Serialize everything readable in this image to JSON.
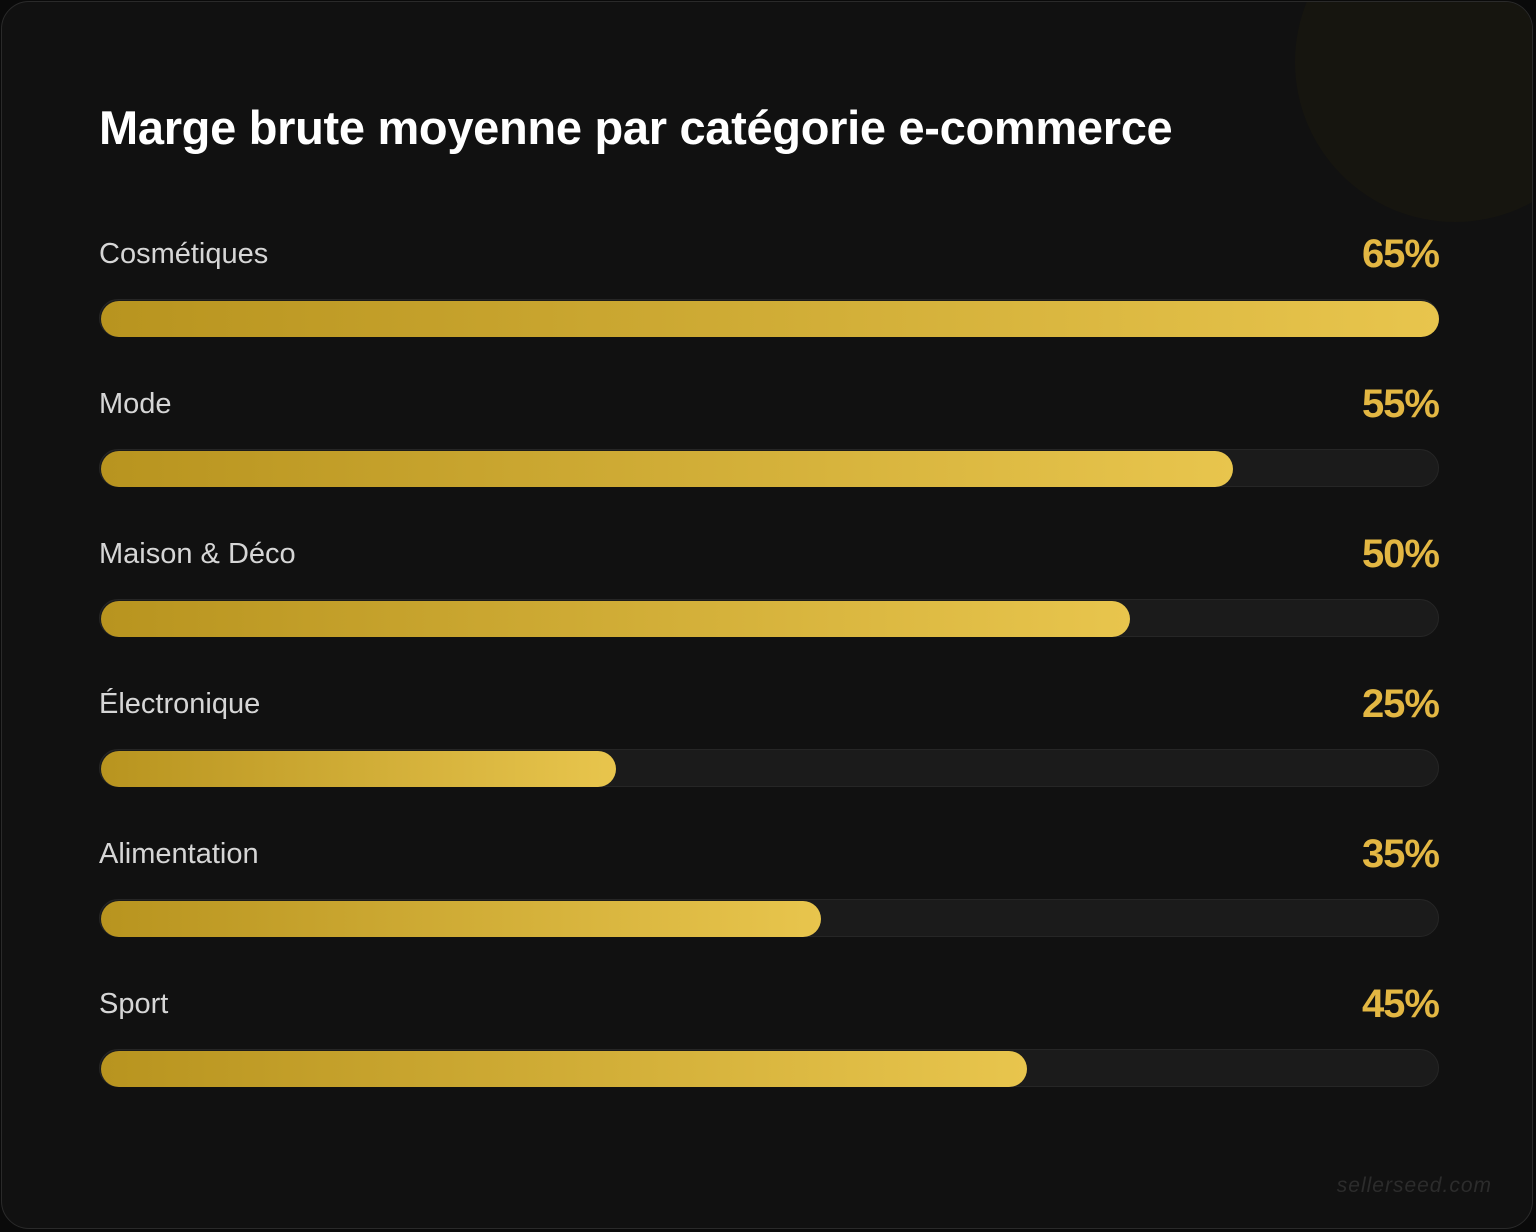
{
  "chart_data": {
    "type": "bar",
    "orientation": "horizontal",
    "title": "Marge brute moyenne par catégorie e-commerce",
    "categories": [
      "Cosmétiques",
      "Mode",
      "Maison & Déco",
      "Électronique",
      "Alimentation",
      "Sport"
    ],
    "values": [
      65,
      55,
      50,
      25,
      35,
      45
    ],
    "value_labels": [
      "65%",
      "55%",
      "50%",
      "25%",
      "35%",
      "45%"
    ],
    "unit": "%",
    "xlim": [
      0,
      65
    ],
    "grid": false,
    "colors": {
      "bar_start": "#b8941f",
      "bar_end": "#e8c54d",
      "value_text": "#e3b743",
      "track": "#1b1b1b",
      "background": "#111111"
    }
  },
  "watermark": "sellerseed.com"
}
